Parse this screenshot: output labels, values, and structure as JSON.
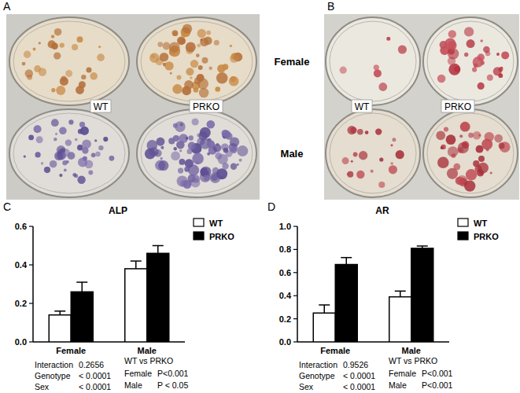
{
  "figure": {
    "panel_labels": [
      "A",
      "B",
      "C",
      "D"
    ],
    "row_labels": [
      "Female",
      "Male"
    ],
    "photos": [
      {
        "column_labels": [
          "WT",
          "PRKO"
        ]
      },
      {
        "column_labels": [
          "WT",
          "PRKO"
        ]
      }
    ]
  },
  "chart_data": [
    {
      "type": "bar",
      "title": "ALP",
      "categories": [
        "Female",
        "Male"
      ],
      "series": [
        {
          "name": "WT",
          "color": "#ffffff",
          "values": [
            0.14,
            0.38
          ],
          "errors": [
            0.02,
            0.04
          ]
        },
        {
          "name": "PRKO",
          "color": "#000000",
          "values": [
            0.26,
            0.46
          ],
          "errors": [
            0.05,
            0.04
          ]
        }
      ],
      "ylim": [
        0,
        0.6
      ],
      "yticks": [
        {
          "value": 0,
          "label": "0.0"
        },
        0.2,
        0.4,
        0.6
      ],
      "legend": "top-right",
      "annotations": {
        "stats": [
          [
            "Interaction",
            "0.2656"
          ],
          [
            "Genotype",
            "< 0.0001"
          ],
          [
            "Sex",
            "< 0.0001"
          ]
        ],
        "comparison_title": "WT vs PRKO",
        "comparisons": [
          [
            "Female",
            "P<0.001"
          ],
          [
            "Male",
            "P < 0.05"
          ]
        ]
      }
    },
    {
      "type": "bar",
      "title": "AR",
      "categories": [
        "Female",
        "Male"
      ],
      "series": [
        {
          "name": "WT",
          "color": "#ffffff",
          "values": [
            0.25,
            0.39
          ],
          "errors": [
            0.07,
            0.05
          ]
        },
        {
          "name": "PRKO",
          "color": "#000000",
          "values": [
            0.67,
            0.81
          ],
          "errors": [
            0.06,
            0.02
          ]
        }
      ],
      "ylim": [
        0,
        1.0
      ],
      "yticks": [
        {
          "value": 0,
          "label": "0.0"
        },
        0.2,
        0.4,
        0.6,
        0.8,
        {
          "value": 1.0,
          "label": "1.0"
        }
      ],
      "legend": "top-right",
      "annotations": {
        "stats": [
          [
            "Interaction",
            "0.9526"
          ],
          [
            "Genotype",
            "< 0.0001"
          ],
          [
            "Sex",
            "< 0.0001"
          ]
        ],
        "comparison_title": "WT vs PRKO",
        "comparisons": [
          [
            "Female",
            "P<0.001"
          ],
          [
            "Male",
            "P<0.001"
          ]
        ]
      }
    }
  ]
}
